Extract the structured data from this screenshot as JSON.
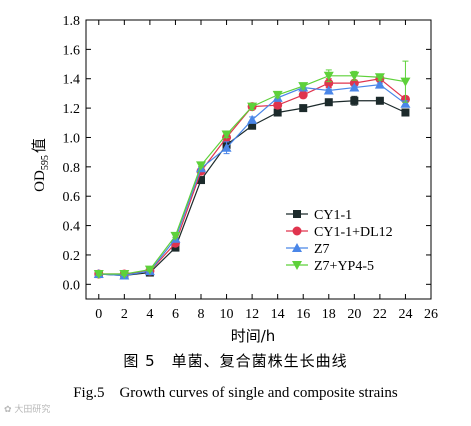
{
  "chart_data": {
    "type": "line",
    "x": [
      0,
      2,
      4,
      6,
      8,
      10,
      12,
      14,
      16,
      18,
      20,
      22,
      24
    ],
    "xlabel": "时间/h",
    "ylabel": "OD595 值",
    "ylabel_parts": {
      "main": "OD",
      "sub": "595",
      "tail": "值"
    },
    "xlim": [
      -1,
      26
    ],
    "ylim": [
      -0.1,
      1.8
    ],
    "xticks": [
      0,
      2,
      4,
      6,
      8,
      10,
      12,
      14,
      16,
      18,
      20,
      22,
      24,
      26
    ],
    "yticks": [
      0.0,
      0.2,
      0.4,
      0.6,
      0.8,
      1.0,
      1.2,
      1.4,
      1.6,
      1.8
    ],
    "ytick_labels": [
      "0.0",
      "0.2",
      "0.4",
      "0.6",
      "0.8",
      "1.0",
      "1.2",
      "1.4",
      "1.6",
      "1.8"
    ],
    "legend_position": "center-right",
    "grid": false,
    "series": [
      {
        "name": "CY1-1",
        "color": "#1c2a2b",
        "marker": "square",
        "values": [
          0.07,
          0.06,
          0.08,
          0.25,
          0.71,
          0.95,
          1.08,
          1.17,
          1.2,
          1.24,
          1.25,
          1.25,
          1.17
        ],
        "errors": [
          0.01,
          0.01,
          0.01,
          0.01,
          0.01,
          0.02,
          0.02,
          0.02,
          0.01,
          0.01,
          0.03,
          0.01,
          0.01
        ]
      },
      {
        "name": "CY1-1+DL12",
        "color": "#e0344e",
        "marker": "circle",
        "values": [
          0.07,
          0.07,
          0.09,
          0.28,
          0.77,
          1.0,
          1.21,
          1.22,
          1.29,
          1.37,
          1.37,
          1.4,
          1.26
        ],
        "errors": [
          0.01,
          0.01,
          0.01,
          0.01,
          0.01,
          0.02,
          0.02,
          0.02,
          0.01,
          0.03,
          0.02,
          0.01,
          0.02
        ]
      },
      {
        "name": "Z7",
        "color": "#4a86e8",
        "marker": "triangle-up",
        "values": [
          0.07,
          0.06,
          0.09,
          0.31,
          0.79,
          0.93,
          1.12,
          1.27,
          1.34,
          1.32,
          1.34,
          1.36,
          1.23
        ],
        "errors": [
          0.01,
          0.01,
          0.01,
          0.01,
          0.01,
          0.04,
          0.02,
          0.02,
          0.01,
          0.01,
          0.01,
          0.01,
          0.02
        ]
      },
      {
        "name": "Z7+YP4-5",
        "color": "#5ed13a",
        "marker": "triangle-down",
        "values": [
          0.07,
          0.07,
          0.1,
          0.33,
          0.81,
          1.02,
          1.21,
          1.29,
          1.35,
          1.42,
          1.42,
          1.41,
          1.38
        ],
        "errors": [
          0.01,
          0.01,
          0.01,
          0.01,
          0.01,
          0.02,
          0.02,
          0.02,
          0.02,
          0.04,
          0.03,
          0.02,
          0.14
        ]
      }
    ]
  },
  "caption_cn": "图 5　单菌、复合菌株生长曲线",
  "caption_en": "Fig.5　Growth curves of single and composite strains",
  "watermark": "✿ 大田研究"
}
